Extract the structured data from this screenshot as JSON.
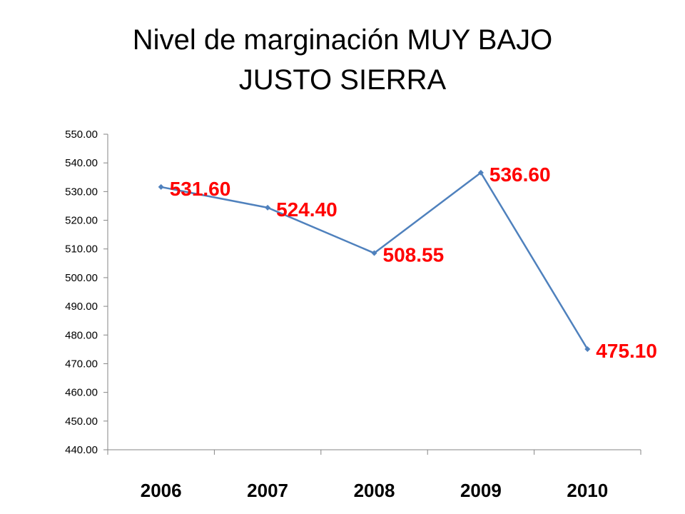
{
  "chart_data": {
    "type": "line",
    "title": [
      "Nivel de marginación MUY BAJO",
      "JUSTO SIERRA"
    ],
    "categories": [
      "2006",
      "2007",
      "2008",
      "2009",
      "2010"
    ],
    "series": [
      {
        "values": [
          531.6,
          524.4,
          508.55,
          536.6,
          475.1
        ]
      }
    ],
    "data_labels": [
      "531.60",
      "524.40",
      "508.55",
      "536.60",
      "475.10"
    ],
    "ylim": [
      440,
      550
    ],
    "y_ticks": [
      "440.00",
      "450.00",
      "460.00",
      "470.00",
      "480.00",
      "490.00",
      "500.00",
      "510.00",
      "520.00",
      "530.00",
      "540.00",
      "550.00"
    ],
    "line_color": "#4F81BD",
    "label_color": "#FF0000",
    "grid": false,
    "legend": "none"
  }
}
